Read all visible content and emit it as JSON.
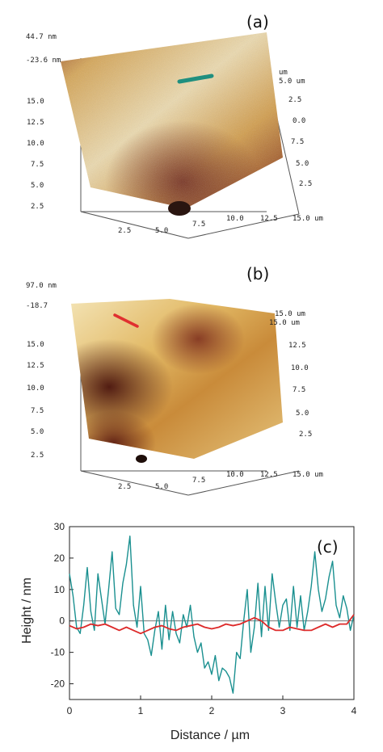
{
  "figure": {
    "panel_a": {
      "label": "(a)",
      "z_max": "44.7 nm",
      "z_min": "-23.6 nm",
      "left_axis": [
        "15.0",
        "12.5",
        "10.0",
        "7.5",
        "5.0",
        "2.5"
      ],
      "right_axis": [
        "5.0 um",
        "2.5",
        "0.0",
        "7.5",
        "5.0",
        "2.5"
      ],
      "bottom_axis": [
        "2.5",
        "5.0",
        "7.5",
        "10.0",
        "12.5",
        "15.0 um"
      ],
      "right_top_label": "um",
      "marker_color": "#1f8f7f",
      "surface_colors": [
        "#e7c98a",
        "#c7902f",
        "#8a3a1e"
      ]
    },
    "panel_b": {
      "label": "(b)",
      "z_max": "97.0 nm",
      "z_min": "-18.7",
      "left_axis": [
        "15.0",
        "12.5",
        "10.0",
        "7.5",
        "5.0",
        "2.5"
      ],
      "right_axis": [
        "15.0 um",
        "15.0 um",
        "12.5",
        "10.0",
        "7.5",
        "5.0",
        "2.5"
      ],
      "bottom_axis": [
        "2.5",
        "5.0",
        "7.5",
        "10.0",
        "12.5",
        "15.0 um"
      ],
      "marker_color": "#e03030",
      "surface_colors": [
        "#f3e0a8",
        "#d9a850",
        "#6a2418"
      ]
    }
  },
  "chart_data": {
    "type": "line",
    "panel_label": "(c)",
    "xlabel": "Distance / µm",
    "ylabel": "Height / nm",
    "xlim": [
      0,
      4
    ],
    "ylim": [
      -25,
      30
    ],
    "xticks": [
      0,
      1,
      2,
      3,
      4
    ],
    "yticks": [
      -20,
      -10,
      0,
      10,
      20,
      30
    ],
    "grid": false,
    "series": [
      {
        "color": "#1a9090",
        "x": [
          0,
          0.05,
          0.1,
          0.15,
          0.2,
          0.25,
          0.3,
          0.35,
          0.4,
          0.45,
          0.5,
          0.55,
          0.6,
          0.65,
          0.7,
          0.75,
          0.8,
          0.85,
          0.9,
          0.95,
          1.0,
          1.05,
          1.1,
          1.15,
          1.2,
          1.25,
          1.3,
          1.35,
          1.4,
          1.45,
          1.5,
          1.55,
          1.6,
          1.65,
          1.7,
          1.75,
          1.8,
          1.85,
          1.9,
          1.95,
          2.0,
          2.05,
          2.1,
          2.15,
          2.2,
          2.25,
          2.3,
          2.35,
          2.4,
          2.45,
          2.5,
          2.55,
          2.6,
          2.65,
          2.7,
          2.75,
          2.8,
          2.85,
          2.9,
          2.95,
          3.0,
          3.05,
          3.1,
          3.15,
          3.2,
          3.25,
          3.3,
          3.35,
          3.4,
          3.45,
          3.5,
          3.55,
          3.6,
          3.65,
          3.7,
          3.75,
          3.8,
          3.85,
          3.9,
          3.95,
          4.0
        ],
        "y": [
          15,
          8,
          -2,
          -4,
          5,
          17,
          3,
          -3,
          15,
          7,
          -1,
          10,
          22,
          4,
          2,
          12,
          18,
          27,
          5,
          -2,
          11,
          -4,
          -6,
          -11,
          -3,
          3,
          -9,
          5,
          -6,
          3,
          -4,
          -7,
          2,
          -2,
          5,
          -5,
          -10,
          -7,
          -15,
          -13,
          -17,
          -11,
          -19,
          -15,
          -16,
          -18,
          -23,
          -10,
          -12,
          0,
          10,
          -10,
          -2,
          12,
          -5,
          11,
          -3,
          15,
          6,
          -2,
          5,
          7,
          -3,
          11,
          -2,
          8,
          -3,
          3,
          11,
          22,
          10,
          3,
          7,
          14,
          19,
          5,
          1,
          8,
          4,
          -3,
          2
        ]
      },
      {
        "color": "#dd2a2a",
        "x": [
          0,
          0.1,
          0.2,
          0.3,
          0.4,
          0.5,
          0.6,
          0.7,
          0.8,
          0.9,
          1.0,
          1.1,
          1.2,
          1.3,
          1.4,
          1.5,
          1.6,
          1.7,
          1.8,
          1.9,
          2.0,
          2.1,
          2.2,
          2.3,
          2.4,
          2.5,
          2.6,
          2.7,
          2.8,
          2.9,
          3.0,
          3.1,
          3.2,
          3.3,
          3.4,
          3.5,
          3.6,
          3.7,
          3.8,
          3.9,
          4.0
        ],
        "y": [
          -1.5,
          -2.5,
          -2,
          -1,
          -1.5,
          -1,
          -2,
          -3,
          -2,
          -3,
          -4,
          -3,
          -2,
          -1.5,
          -2.5,
          -3,
          -2,
          -1.5,
          -1,
          -2,
          -2.5,
          -2,
          -1,
          -1.5,
          -1,
          0,
          1,
          0,
          -2,
          -3,
          -3,
          -2,
          -2.5,
          -3,
          -3,
          -2,
          -1,
          -2,
          -1,
          -1,
          2
        ]
      }
    ]
  }
}
